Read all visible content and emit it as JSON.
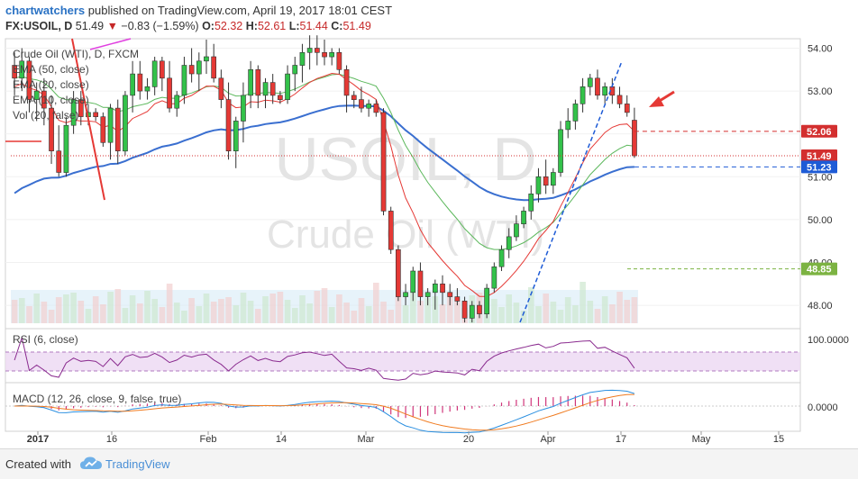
{
  "header": {
    "author": "chartwatchers",
    "published": "published on TradingView.com, April 19, 2017 18:01 CEST",
    "symbol": "FX:USOIL, D",
    "last": "51.49",
    "change": "−0.83 (−1.59%)",
    "o_label": "O:",
    "o": "52.32",
    "h_label": "H:",
    "h": "52.61",
    "l_label": "L:",
    "l": "51.44",
    "c_label": "C:",
    "c": "51.49"
  },
  "watermark": {
    "symbol": "USOIL, D",
    "name": "Crude Oil (WTI)"
  },
  "legend": {
    "title": "Crude Oil (WTI), D, FXCM",
    "ema50": "EMA (50, close)",
    "ema20": "EMA (20, close)",
    "ema10": "EMA (10, close)",
    "vol": "Vol (20, false)"
  },
  "rsi_label": "RSI (6, close)",
  "macd_label": "MACD (12, 26, close, 9, false, true)",
  "price_axis": {
    "ticks": [
      "54.00",
      "53.00",
      "52.00",
      "51.00",
      "50.00",
      "49.00",
      "48.00"
    ]
  },
  "rsi_axis": {
    "ticks": [
      "100.0000"
    ]
  },
  "macd_axis": {
    "ticks": [
      "0.0000"
    ]
  },
  "x_axis": {
    "ticks": [
      "2017",
      "16",
      "Feb",
      "14",
      "Mar",
      "20",
      "Apr",
      "17",
      "May",
      "15"
    ]
  },
  "price_labels": [
    {
      "value": "52.06",
      "color": "#d32f2f"
    },
    {
      "value": "51.49",
      "color": "#d32f2f"
    },
    {
      "value": "51.23",
      "color": "#1e5bd6"
    },
    {
      "value": "48.85",
      "color": "#7cb342"
    }
  ],
  "colors": {
    "up": "#33c24a",
    "down": "#e53935",
    "ema50": "#3a6fd0",
    "ema20": "#5cb85c",
    "ema10": "#e53935",
    "volume": "#a8d0ea",
    "rsi": "#8a2b8f",
    "rsi_band": "#ecd8f2",
    "macd": "#2a8fe0",
    "signal": "#f07b20",
    "hist": "#d0357a"
  },
  "footer": {
    "created": "Created with",
    "brand": "TradingView"
  },
  "chart_data": {
    "type": "candlestick",
    "title": "FX:USOIL, D",
    "ylim": [
      47.5,
      54.2
    ],
    "series_ohlc": [
      [
        53.6,
        53.9,
        52.9,
        53.3
      ],
      [
        53.3,
        54.0,
        53.0,
        53.7
      ],
      [
        53.7,
        53.8,
        52.5,
        52.8
      ],
      [
        52.8,
        53.2,
        52.3,
        53.0
      ],
      [
        53.0,
        53.3,
        52.2,
        52.6
      ],
      [
        52.6,
        52.9,
        51.3,
        51.6
      ],
      [
        51.6,
        52.2,
        51.0,
        51.1
      ],
      [
        51.1,
        52.4,
        51.0,
        52.2
      ],
      [
        52.2,
        53.0,
        52.0,
        52.8
      ],
      [
        52.8,
        53.0,
        52.2,
        52.4
      ],
      [
        52.4,
        52.7,
        52.2,
        52.5
      ],
      [
        52.5,
        52.6,
        52.3,
        52.4
      ],
      [
        52.4,
        52.5,
        51.7,
        51.8
      ],
      [
        51.8,
        52.7,
        51.4,
        52.6
      ],
      [
        52.6,
        52.8,
        51.3,
        51.6
      ],
      [
        51.6,
        53.0,
        51.5,
        52.9
      ],
      [
        52.9,
        53.7,
        52.5,
        53.4
      ],
      [
        53.4,
        53.7,
        52.8,
        53.0
      ],
      [
        53.0,
        53.3,
        52.8,
        53.1
      ],
      [
        53.1,
        53.8,
        52.9,
        53.7
      ],
      [
        53.7,
        53.8,
        53.0,
        53.3
      ],
      [
        53.3,
        53.7,
        52.5,
        52.6
      ],
      [
        52.6,
        53.0,
        52.4,
        52.9
      ],
      [
        52.9,
        53.8,
        52.7,
        53.6
      ],
      [
        53.6,
        54.0,
        53.2,
        53.4
      ],
      [
        53.4,
        53.9,
        53.0,
        53.7
      ],
      [
        53.7,
        54.2,
        53.4,
        53.8
      ],
      [
        53.8,
        54.1,
        53.2,
        53.3
      ],
      [
        53.3,
        53.5,
        52.6,
        52.8
      ],
      [
        52.8,
        53.2,
        51.4,
        51.6
      ],
      [
        51.6,
        52.4,
        51.2,
        52.3
      ],
      [
        52.3,
        53.2,
        51.8,
        52.9
      ],
      [
        52.9,
        53.7,
        52.6,
        53.5
      ],
      [
        53.5,
        53.6,
        52.6,
        52.9
      ],
      [
        52.9,
        53.3,
        52.6,
        53.2
      ],
      [
        53.2,
        53.4,
        52.7,
        52.9
      ],
      [
        52.9,
        53.0,
        52.7,
        52.8
      ],
      [
        52.8,
        53.6,
        52.7,
        53.4
      ],
      [
        53.4,
        53.8,
        53.0,
        53.6
      ],
      [
        53.6,
        54.1,
        53.2,
        53.9
      ],
      [
        53.9,
        54.3,
        53.5,
        54.0
      ],
      [
        54.0,
        54.3,
        53.6,
        53.9
      ],
      [
        53.9,
        54.2,
        53.6,
        53.8
      ],
      [
        53.8,
        54.0,
        53.6,
        53.9
      ],
      [
        53.9,
        54.0,
        53.4,
        53.5
      ],
      [
        53.5,
        53.6,
        52.5,
        52.9
      ],
      [
        52.9,
        53.0,
        52.6,
        52.8
      ],
      [
        52.8,
        53.1,
        52.5,
        52.6
      ],
      [
        52.6,
        52.8,
        52.4,
        52.7
      ],
      [
        52.7,
        52.8,
        52.4,
        52.5
      ],
      [
        52.5,
        52.6,
        50.1,
        50.2
      ],
      [
        50.2,
        50.3,
        49.2,
        49.3
      ],
      [
        49.3,
        49.4,
        48.1,
        48.2
      ],
      [
        48.2,
        48.5,
        48.0,
        48.3
      ],
      [
        48.3,
        48.9,
        48.1,
        48.8
      ],
      [
        48.8,
        49.0,
        48.0,
        48.2
      ],
      [
        48.2,
        48.4,
        48.0,
        48.3
      ],
      [
        48.3,
        48.6,
        47.9,
        48.5
      ],
      [
        48.5,
        48.7,
        48.0,
        48.3
      ],
      [
        48.3,
        48.5,
        48.0,
        48.2
      ],
      [
        48.2,
        48.4,
        48.0,
        48.1
      ],
      [
        48.1,
        48.2,
        47.6,
        47.7
      ],
      [
        47.7,
        48.1,
        47.6,
        48.0
      ],
      [
        48.0,
        48.1,
        47.7,
        47.8
      ],
      [
        47.8,
        48.5,
        47.7,
        48.4
      ],
      [
        48.4,
        49.0,
        48.3,
        48.9
      ],
      [
        48.9,
        49.4,
        48.8,
        49.3
      ],
      [
        49.3,
        49.8,
        49.1,
        49.6
      ],
      [
        49.6,
        50.1,
        49.5,
        49.9
      ],
      [
        49.9,
        50.3,
        49.8,
        50.2
      ],
      [
        50.2,
        50.8,
        50.0,
        50.6
      ],
      [
        50.6,
        51.2,
        50.4,
        51.0
      ],
      [
        51.0,
        51.4,
        50.6,
        50.8
      ],
      [
        50.8,
        51.2,
        50.6,
        51.1
      ],
      [
        51.1,
        52.3,
        51.0,
        52.1
      ],
      [
        52.1,
        52.6,
        51.9,
        52.3
      ],
      [
        52.3,
        52.8,
        52.1,
        52.7
      ],
      [
        52.7,
        53.3,
        52.5,
        53.1
      ],
      [
        53.1,
        53.4,
        52.9,
        53.3
      ],
      [
        53.3,
        53.5,
        52.8,
        52.9
      ],
      [
        52.9,
        53.2,
        52.7,
        53.1
      ],
      [
        53.1,
        53.3,
        52.7,
        52.9
      ],
      [
        52.9,
        53.1,
        52.6,
        52.7
      ],
      [
        52.7,
        52.9,
        52.4,
        52.5
      ],
      [
        52.32,
        52.61,
        51.44,
        51.49
      ]
    ],
    "ema10_last": 52.06,
    "ema50_last": 51.23,
    "support_level": 48.85,
    "last_price": 51.49
  }
}
